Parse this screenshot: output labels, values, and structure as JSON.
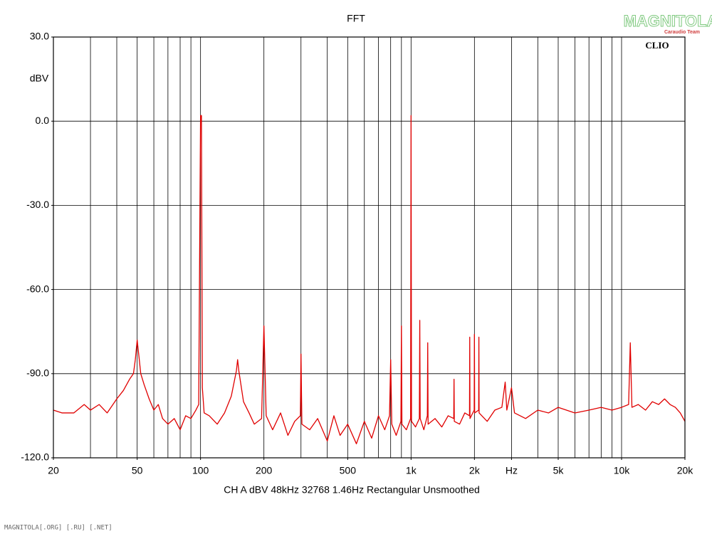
{
  "chart_data": {
    "type": "line",
    "title": "FFT",
    "ylabel": "dBV",
    "xlabel": "CH A   dBV   48kHz   32768   1.46Hz   Rectangular   Unsmoothed",
    "brand": "CLIO",
    "log_x": true,
    "grid": true,
    "xlim": [
      20,
      20000
    ],
    "ylim": [
      -120,
      30
    ],
    "xticks": [
      20,
      50,
      100,
      200,
      500,
      {
        "value": 1000,
        "label": "1k"
      },
      {
        "value": 2000,
        "label": "2k"
      },
      {
        "value": 3000,
        "label": "Hz"
      },
      {
        "value": 5000,
        "label": "5k"
      },
      {
        "value": 10000,
        "label": "10k"
      },
      {
        "value": 20000,
        "label": "20k"
      }
    ],
    "xgrid": [
      30,
      40,
      50,
      60,
      70,
      80,
      90,
      100,
      200,
      300,
      400,
      500,
      600,
      700,
      800,
      900,
      1000,
      2000,
      3000,
      4000,
      5000,
      6000,
      7000,
      8000,
      9000,
      10000
    ],
    "yticks": [
      {
        "value": 30,
        "label": "30.0"
      },
      {
        "value": 0,
        "label": "0.0"
      },
      {
        "value": -30,
        "label": "-30.0"
      },
      {
        "value": -60,
        "label": "-60.0"
      },
      {
        "value": -90,
        "label": "-90.0"
      },
      {
        "value": -120,
        "label": "-120.0"
      }
    ],
    "ygrid": [
      0,
      -30,
      -60,
      -90
    ],
    "series": [
      {
        "name": "CH A",
        "color": "#e00000",
        "x": [
          20,
          22,
          25,
          28,
          30,
          33,
          36,
          40,
          43,
          46,
          48,
          49,
          50,
          51,
          52,
          54,
          57,
          60,
          63,
          66,
          70,
          75,
          80,
          85,
          90,
          95,
          98,
          100,
          101,
          102,
          104,
          110,
          120,
          130,
          140,
          148,
          150,
          152,
          160,
          170,
          180,
          195,
          200,
          205,
          220,
          240,
          260,
          280,
          298,
          300,
          303,
          330,
          360,
          400,
          430,
          460,
          500,
          550,
          600,
          650,
          700,
          750,
          790,
          800,
          810,
          850,
          895,
          900,
          905,
          950,
          995,
          1000,
          1005,
          1050,
          1095,
          1100,
          1105,
          1150,
          1195,
          1200,
          1205,
          1300,
          1400,
          1500,
          1595,
          1600,
          1605,
          1700,
          1800,
          1895,
          1900,
          1905,
          1995,
          2000,
          2005,
          2095,
          2100,
          2105,
          2300,
          2500,
          2700,
          2800,
          2850,
          3000,
          3100,
          3500,
          4000,
          4500,
          5000,
          6000,
          7000,
          8000,
          9000,
          10000,
          10800,
          11000,
          11200,
          12000,
          13000,
          14000,
          15000,
          16000,
          17000,
          18000,
          19000,
          20000
        ],
        "values": [
          -103,
          -104,
          -104,
          -101,
          -103,
          -101,
          -104,
          -99,
          -96,
          -92,
          -90,
          -85,
          -78,
          -84,
          -90,
          -94,
          -99,
          -103,
          -101,
          -106,
          -108,
          -106,
          -110,
          -105,
          -106,
          -103,
          -101,
          2,
          2,
          -95,
          -104,
          -105,
          -108,
          -104,
          -98,
          -89,
          -85,
          -89,
          -100,
          -104,
          -108,
          -106,
          -73,
          -105,
          -110,
          -104,
          -112,
          -107,
          -105,
          -83,
          -108,
          -110,
          -106,
          -114,
          -105,
          -112,
          -108,
          -115,
          -107,
          -113,
          -105,
          -110,
          -105,
          -85,
          -108,
          -112,
          -107,
          -73,
          -108,
          -110,
          -106,
          2,
          -107,
          -109,
          -106,
          -71,
          -106,
          -110,
          -105,
          -79,
          -108,
          -106,
          -109,
          -105,
          -106,
          -92,
          -107,
          -108,
          -104,
          -105,
          -77,
          -106,
          -103,
          -76,
          -104,
          -103,
          -77,
          -104,
          -107,
          -103,
          -102,
          -93,
          -103,
          -95,
          -104,
          -106,
          -103,
          -104,
          -102,
          -104,
          -103,
          -102,
          -103,
          -102,
          -101,
          -79,
          -102,
          -101,
          -103,
          -100,
          -101,
          -99,
          -101,
          -102,
          -104,
          -107
        ]
      }
    ]
  },
  "watermark": {
    "logo": "MAGNITOLA",
    "team": "Caraudio Team",
    "footer": "MAGNITOLA[.ORG] [.RU] [.NET]"
  }
}
